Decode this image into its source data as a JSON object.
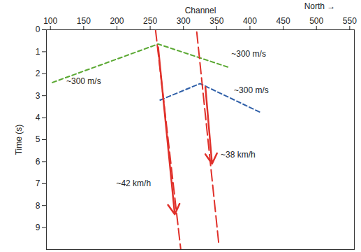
{
  "chart_data": {
    "type": "annotated_section",
    "x_label": "Channel",
    "y_label": "Time (s)",
    "xlim": [
      94,
      557
    ],
    "ylim": [
      0,
      10
    ],
    "xticks": [
      100,
      150,
      200,
      250,
      300,
      350,
      400,
      450,
      500,
      550
    ],
    "yticks": [
      0,
      1,
      2,
      3,
      4,
      5,
      6,
      7,
      8,
      9
    ],
    "corner_text": {
      "text": "North →",
      "x": 505,
      "y": -1.05
    },
    "lines": [
      {
        "color": "#5aa832",
        "line_style": "dashed",
        "x": [
          103,
          262,
          367
        ],
        "y": [
          2.4,
          0.65,
          1.7
        ]
      },
      {
        "color": "#2f5fa8",
        "line_style": "dashed",
        "x": [
          265,
          325,
          415
        ],
        "y": [
          3.2,
          2.45,
          3.75
        ]
      },
      {
        "color": "#e0302a",
        "line_style": "long_dashed",
        "x": [
          258,
          296
        ],
        "y": [
          0,
          10
        ]
      },
      {
        "color": "#e0302a",
        "line_style": "long_dashed",
        "x": [
          320,
          353
        ],
        "y": [
          0.1,
          9.7
        ]
      }
    ],
    "arrows": [
      {
        "color": "#e0302a",
        "x": [
          262,
          287
        ],
        "y": [
          0.8,
          8.4
        ]
      },
      {
        "color": "#e0302a",
        "x": [
          333,
          343
        ],
        "y": [
          2.6,
          6.1
        ]
      }
    ],
    "annotations": [
      {
        "text": "~300 m/s",
        "x": 150,
        "y": 2.35
      },
      {
        "text": "~300 m/s",
        "x": 398,
        "y": 1.1
      },
      {
        "text": "~300 m/s",
        "x": 402,
        "y": 2.75
      },
      {
        "text": "~42 km/h",
        "x": 225,
        "y": 7.0
      },
      {
        "text": "~38 km/h",
        "x": 382,
        "y": 5.7
      }
    ]
  }
}
